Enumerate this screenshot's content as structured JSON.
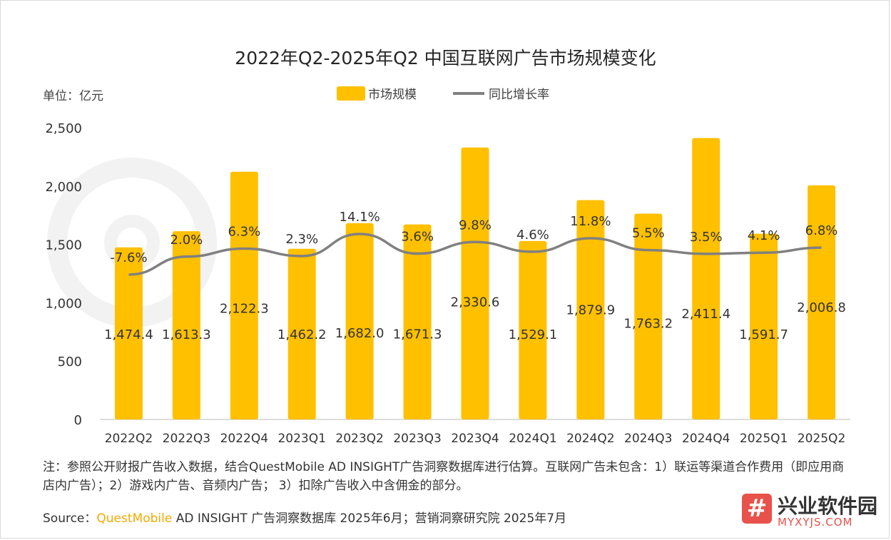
{
  "title": "2022年Q2-2025年Q2 中国互联网广告市场规模变化",
  "unit_label": "单位：亿元",
  "legend": {
    "bar_label": "市场规模",
    "line_label": "同比增长率"
  },
  "colors": {
    "bar": "#ffc000",
    "line": "#808080",
    "brand": "#f5a800"
  },
  "chart_data": {
    "type": "bar",
    "categories": [
      "2022Q2",
      "2022Q3",
      "2022Q4",
      "2023Q1",
      "2023Q2",
      "2023Q3",
      "2023Q4",
      "2024Q1",
      "2024Q2",
      "2024Q3",
      "2024Q4",
      "2025Q1",
      "2025Q2"
    ],
    "series": [
      {
        "name": "市场规模",
        "type": "bar",
        "values": [
          1474.4,
          1613.3,
          2122.3,
          1462.2,
          1682.0,
          1671.3,
          2330.6,
          1529.1,
          1879.9,
          1763.2,
          2411.4,
          1591.7,
          2006.8
        ],
        "labels": [
          "1,474.4",
          "1,613.3",
          "2,122.3",
          "1,462.2",
          "1,682.0",
          "1,671.3",
          "2,330.6",
          "1,529.1",
          "1,879.9",
          "1,763.2",
          "2,411.4",
          "1,591.7",
          "2,006.8"
        ]
      },
      {
        "name": "同比增长率",
        "type": "line",
        "values": [
          -7.6,
          2.0,
          6.3,
          2.3,
          14.1,
          3.6,
          9.8,
          4.6,
          11.8,
          5.5,
          3.5,
          4.1,
          6.8
        ],
        "labels": [
          "-7.6%",
          "2.0%",
          "6.3%",
          "2.3%",
          "14.1%",
          "3.6%",
          "9.8%",
          "4.6%",
          "11.8%",
          "5.5%",
          "3.5%",
          "4.1%",
          "6.8%"
        ]
      }
    ],
    "y_ticks": [
      "2,500",
      "2,000",
      "1,500",
      "1,000",
      "500",
      "0"
    ],
    "ylim": [
      0,
      2500
    ],
    "grid": false,
    "legend_position": "top"
  },
  "note": "注：参照公开财报广告收入数据，结合QuestMobile AD INSIGHT广告洞察数据库进行估算。互联网广告未包含：1）联运等渠道合作费用（即应用商店内广告）；2）游戏内广告、音频内广告； 3）扣除广告收入中含佣金的部分。",
  "source": {
    "prefix": "Source：",
    "brand": "QuestMobile",
    "rest": " AD INSIGHT 广告洞察数据库 2025年6月；营销洞察研究院 2025年7月"
  },
  "watermark": {
    "logo_glyph": "#",
    "name": "兴业软件园",
    "url": "MYXYJS.COM"
  }
}
